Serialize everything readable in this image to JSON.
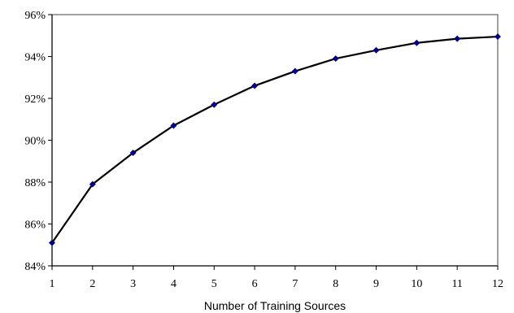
{
  "chart_data": {
    "type": "line",
    "title": "",
    "xlabel": "Number of Training Sources",
    "ylabel": "",
    "x": [
      1,
      2,
      3,
      4,
      5,
      6,
      7,
      8,
      9,
      10,
      11,
      12
    ],
    "series": [
      {
        "values": [
          85.1,
          87.9,
          89.4,
          90.7,
          91.7,
          92.6,
          93.3,
          93.9,
          94.3,
          94.65,
          94.85,
          94.95
        ]
      }
    ],
    "xlim": [
      1,
      12
    ],
    "ylim": [
      84,
      96
    ],
    "yticks": [
      84,
      86,
      88,
      90,
      92,
      94,
      96
    ],
    "ytick_labels": [
      "84%",
      "86%",
      "88%",
      "90%",
      "92%",
      "94%",
      "96%"
    ],
    "xtick_labels": [
      "1",
      "2",
      "3",
      "4",
      "5",
      "6",
      "7",
      "8",
      "9",
      "10",
      "11",
      "12"
    ],
    "grid": false,
    "legend": "none",
    "colors": {
      "line": "#000000",
      "marker": "#00008b",
      "frame": "#808080",
      "axis": "#000000"
    }
  }
}
